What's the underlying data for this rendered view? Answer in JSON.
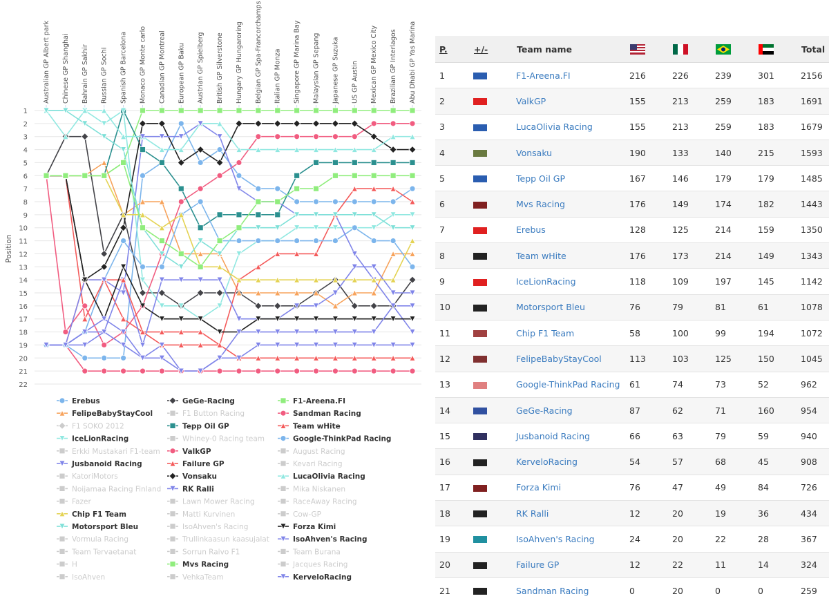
{
  "chart_data": {
    "type": "line",
    "y_axis_label": "Position",
    "reversed": true,
    "grid": true,
    "categories": [
      "Australian GP Albert park",
      "Chinese GP Shanghai",
      "Bahrain GP Sakhir",
      "Russian GP Sochi",
      "Spanish GP Barcelona",
      "Monaco GP Monte carlo",
      "Canadian GP Montreal",
      "European GP Baku",
      "Austrian GP Spielberg",
      "British GP Silverstone",
      "Hungary GP Hungaroring",
      "Belgian GP Spa-Francorchamps",
      "Italian GP Monza",
      "Singapore GP Marina Bay",
      "Malaysian GP Sepang",
      "Japanese GP Suzuka",
      "US GP Austin",
      "Mexican GP Mexico City",
      "Brazilian GP Interlagos",
      "Abu Dhabi GP Yas Marina"
    ],
    "ylim": [
      1,
      22
    ],
    "yticks": [
      1,
      2,
      3,
      4,
      5,
      6,
      7,
      8,
      9,
      10,
      11,
      12,
      13,
      14,
      15,
      16,
      17,
      18,
      19,
      20,
      21,
      22
    ],
    "series": [
      {
        "name": "Erebus",
        "color": "#7cb5ec",
        "marker": "circle",
        "visible": true,
        "values": [
          19,
          19,
          20,
          20,
          20,
          6,
          5,
          2,
          5,
          4,
          6,
          7,
          7,
          8,
          8,
          8,
          8,
          8,
          8,
          7
        ]
      },
      {
        "name": "GeGe-Racing",
        "color": "#434348",
        "marker": "diamond",
        "visible": true,
        "values": [
          6,
          3,
          3,
          12,
          9,
          15,
          15,
          16,
          15,
          15,
          15,
          16,
          16,
          16,
          15,
          14,
          16,
          16,
          16,
          14
        ]
      },
      {
        "name": "F1-Areena.FI",
        "color": "#90ed7d",
        "marker": "square",
        "visible": true,
        "values": [
          6,
          6,
          6,
          6,
          5,
          1,
          1,
          1,
          1,
          1,
          1,
          1,
          1,
          1,
          1,
          1,
          1,
          1,
          1,
          1
        ]
      },
      {
        "name": "FelipeBabyStayCool",
        "color": "#f7a35c",
        "marker": "triangle",
        "visible": true,
        "values": [
          6,
          6,
          6,
          5,
          9,
          8,
          8,
          12,
          12,
          12,
          15,
          15,
          15,
          15,
          15,
          16,
          15,
          15,
          12,
          12
        ]
      },
      {
        "name": "F1 Button Racing",
        "color": "#cccccc",
        "marker": "square",
        "visible": false
      },
      {
        "name": "Sandman Racing",
        "color": "#f15c80",
        "marker": "circle",
        "visible": true,
        "values": [
          19,
          19,
          21,
          21,
          21,
          21,
          21,
          21,
          21,
          21,
          21,
          21,
          21,
          21,
          21,
          21,
          21,
          21,
          21,
          21
        ]
      },
      {
        "name": "F1 SOKO 2012",
        "color": "#cccccc",
        "marker": "diamond",
        "visible": false
      },
      {
        "name": "Tepp Oil GP",
        "color": "#2b908f",
        "marker": "square",
        "visible": true,
        "values": [
          6,
          6,
          6,
          6,
          1,
          4,
          5,
          7,
          10,
          9,
          9,
          9,
          9,
          6,
          5,
          5,
          5,
          5,
          5,
          5
        ]
      },
      {
        "name": "Team wHite",
        "color": "#f45b5b",
        "marker": "triangle",
        "visible": true,
        "values": [
          19,
          19,
          14,
          14,
          17,
          18,
          18,
          18,
          18,
          19,
          14,
          13,
          12,
          12,
          12,
          9,
          7,
          7,
          7,
          8
        ]
      },
      {
        "name": "IceLionRacing",
        "color": "#91e8e1",
        "marker": "triangle-down",
        "visible": true,
        "values": [
          1,
          1,
          1,
          2,
          1,
          14,
          16,
          16,
          17,
          16,
          12,
          11,
          11,
          10,
          10,
          10,
          10,
          10,
          9,
          9
        ]
      },
      {
        "name": "Whiney-0 Racing team",
        "color": "#cccccc",
        "marker": "square",
        "visible": false
      },
      {
        "name": "Google-ThinkPad Racing",
        "color": "#7cb5ec",
        "marker": "circle",
        "visible": true,
        "values": [
          19,
          19,
          18,
          14,
          11,
          13,
          13,
          9,
          8,
          11,
          11,
          11,
          11,
          11,
          11,
          11,
          10,
          11,
          11,
          13
        ]
      },
      {
        "name": "Erkki Mustakari F1-team",
        "color": "#cccccc",
        "marker": "square",
        "visible": false
      },
      {
        "name": "ValkGP",
        "color": "#f15c80",
        "marker": "circle",
        "visible": true,
        "values": [
          6,
          18,
          16,
          19,
          18,
          16,
          12,
          8,
          7,
          6,
          5,
          3,
          3,
          3,
          3,
          3,
          3,
          2,
          2,
          2
        ]
      },
      {
        "name": "August Racing",
        "color": "#cccccc",
        "marker": "square",
        "visible": false
      },
      {
        "name": "Jusbanoid Racing",
        "color": "#8085e9",
        "marker": "triangle-down",
        "visible": true,
        "values": [
          19,
          19,
          18,
          18,
          14,
          19,
          14,
          14,
          14,
          14,
          17,
          17,
          17,
          16,
          16,
          15,
          13,
          13,
          15,
          15
        ]
      },
      {
        "name": "Failure GP",
        "color": "#f45b5b",
        "marker": "triangle",
        "visible": true,
        "values": [
          6,
          6,
          17,
          14,
          14,
          18,
          19,
          19,
          19,
          19,
          20,
          20,
          20,
          20,
          20,
          20,
          20,
          20,
          20,
          20
        ]
      },
      {
        "name": "Kevari Racing",
        "color": "#cccccc",
        "marker": "square",
        "visible": false
      },
      {
        "name": "KatoriMotors",
        "color": "#cccccc",
        "marker": "square",
        "visible": false
      },
      {
        "name": "Vonsaku",
        "color": "#222222",
        "marker": "diamond",
        "visible": true,
        "values": [
          6,
          6,
          14,
          13,
          10,
          2,
          2,
          5,
          4,
          5,
          2,
          2,
          2,
          2,
          2,
          2,
          2,
          3,
          4,
          4
        ]
      },
      {
        "name": "LucaOlivia Racing",
        "color": "#91e8e1",
        "marker": "triangle",
        "visible": true,
        "values": [
          1,
          3,
          1,
          1,
          3,
          3,
          4,
          4,
          2,
          2,
          4,
          4,
          4,
          4,
          4,
          4,
          4,
          4,
          3,
          3
        ]
      },
      {
        "name": "Noijamaa Racing Finland",
        "color": "#cccccc",
        "marker": "square",
        "visible": false
      },
      {
        "name": "RK Ralli",
        "color": "#8085e9",
        "marker": "triangle-down",
        "visible": true,
        "values": [
          19,
          19,
          14,
          14,
          15,
          3,
          3,
          3,
          2,
          3,
          7,
          8,
          8,
          9,
          9,
          9,
          12,
          14,
          16,
          18
        ]
      },
      {
        "name": "Mika Niskanen",
        "color": "#cccccc",
        "marker": "square",
        "visible": false
      },
      {
        "name": "Fazer",
        "color": "#cccccc",
        "marker": "square",
        "visible": false
      },
      {
        "name": "Lawn Mower Racing",
        "color": "#cccccc",
        "marker": "square",
        "visible": false
      },
      {
        "name": "RaceAway Racing",
        "color": "#cccccc",
        "marker": "square",
        "visible": false
      },
      {
        "name": "Chip F1 Team",
        "color": "#e4d354",
        "marker": "triangle",
        "visible": true,
        "values": [
          6,
          6,
          6,
          6,
          9,
          9,
          10,
          9,
          13,
          13,
          14,
          14,
          14,
          14,
          14,
          14,
          14,
          14,
          14,
          11
        ]
      },
      {
        "name": "Matti Kurvinen",
        "color": "#cccccc",
        "marker": "square",
        "visible": false
      },
      {
        "name": "Cow-GP",
        "color": "#cccccc",
        "marker": "square",
        "visible": false
      },
      {
        "name": "Motorsport Bleu",
        "color": "#7fe0d8",
        "marker": "triangle-down",
        "visible": true,
        "values": [
          1,
          1,
          2,
          3,
          4,
          10,
          12,
          13,
          11,
          12,
          10,
          10,
          10,
          9,
          9,
          9,
          9,
          9,
          10,
          10
        ]
      },
      {
        "name": "IsoAhven's Racing",
        "color": "#cccccc",
        "marker": "square",
        "visible": false
      },
      {
        "name": "Forza Kimi",
        "color": "#222222",
        "marker": "triangle-down",
        "visible": true,
        "values": [
          6,
          6,
          14,
          17,
          13,
          16,
          17,
          17,
          17,
          18,
          18,
          17,
          17,
          17,
          17,
          17,
          17,
          17,
          17,
          17
        ]
      },
      {
        "name": "Vormula Racing",
        "color": "#cccccc",
        "marker": "square",
        "visible": false
      },
      {
        "name": "Trullinkaasun kaasujalat",
        "color": "#cccccc",
        "marker": "square",
        "visible": false
      },
      {
        "name": "IsoAhven's Racing",
        "color": "#8085e9",
        "marker": "triangle-down",
        "visible": true,
        "values": [
          19,
          19,
          19,
          18,
          19,
          20,
          19,
          21,
          21,
          20,
          20,
          19,
          19,
          19,
          19,
          19,
          19,
          19,
          19,
          19
        ]
      },
      {
        "name": "Team Tervaetanat",
        "color": "#cccccc",
        "marker": "square",
        "visible": false
      },
      {
        "name": "Sorrun Raivo F1",
        "color": "#cccccc",
        "marker": "square",
        "visible": false
      },
      {
        "name": "Team Burana",
        "color": "#cccccc",
        "marker": "square",
        "visible": false
      },
      {
        "name": "H",
        "color": "#cccccc",
        "marker": "square",
        "visible": false
      },
      {
        "name": "Mvs Racing",
        "color": "#90ed7d",
        "marker": "square",
        "visible": true,
        "values": [
          6,
          6,
          6,
          6,
          5,
          10,
          11,
          12,
          13,
          11,
          10,
          8,
          8,
          7,
          7,
          6,
          6,
          6,
          6,
          6
        ]
      },
      {
        "name": "Jacques Racing",
        "color": "#cccccc",
        "marker": "square",
        "visible": false
      },
      {
        "name": "IsoAhven",
        "color": "#cccccc",
        "marker": "square",
        "visible": false
      },
      {
        "name": "VehkaTeam",
        "color": "#cccccc",
        "marker": "square",
        "visible": false
      },
      {
        "name": "KerveloRacing",
        "color": "#8085e9",
        "marker": "triangle-down",
        "visible": true,
        "values": [
          19,
          19,
          18,
          17,
          18,
          20,
          20,
          21,
          21,
          20,
          18,
          18,
          18,
          18,
          18,
          18,
          18,
          18,
          16,
          16
        ]
      }
    ]
  },
  "table": {
    "headers": [
      "P.",
      "+/-",
      "Team name",
      "Total"
    ],
    "rows": [
      [
        1,
        "F1-Areena.FI",
        216,
        226,
        239,
        301,
        2156
      ],
      [
        2,
        "ValkGP",
        155,
        213,
        259,
        183,
        1691
      ],
      [
        3,
        "LucaOlivia Racing",
        155,
        213,
        259,
        183,
        1679
      ],
      [
        4,
        "Vonsaku",
        190,
        133,
        140,
        215,
        1593
      ],
      [
        5,
        "Tepp Oil GP",
        167,
        146,
        179,
        179,
        1485
      ],
      [
        6,
        "Mvs Racing",
        176,
        149,
        174,
        182,
        1443
      ],
      [
        7,
        "Erebus",
        128,
        125,
        214,
        159,
        1350
      ],
      [
        8,
        "Team wHite",
        176,
        173,
        214,
        149,
        1343
      ],
      [
        9,
        "IceLionRacing",
        118,
        109,
        197,
        145,
        1142
      ],
      [
        10,
        "Motorsport Bleu",
        76,
        79,
        81,
        61,
        1078
      ],
      [
        11,
        "Chip F1 Team",
        58,
        100,
        99,
        194,
        1072
      ],
      [
        12,
        "FelipeBabyStayCool",
        113,
        103,
        125,
        150,
        1045
      ],
      [
        13,
        "Google-ThinkPad Racing",
        61,
        74,
        73,
        52,
        962
      ],
      [
        14,
        "GeGe-Racing",
        87,
        62,
        71,
        160,
        954
      ],
      [
        15,
        "Jusbanoid Racing",
        66,
        63,
        79,
        59,
        940
      ],
      [
        16,
        "KerveloRacing",
        54,
        57,
        68,
        45,
        908
      ],
      [
        17,
        "Forza Kimi",
        76,
        47,
        49,
        84,
        726
      ],
      [
        18,
        "RK Ralli",
        12,
        20,
        19,
        36,
        434
      ],
      [
        19,
        "IsoAhven's Racing",
        24,
        20,
        22,
        28,
        367
      ],
      [
        20,
        "Failure GP",
        12,
        22,
        11,
        14,
        324
      ],
      [
        21,
        "Sandman Racing",
        0,
        20,
        0,
        0,
        259
      ]
    ]
  }
}
